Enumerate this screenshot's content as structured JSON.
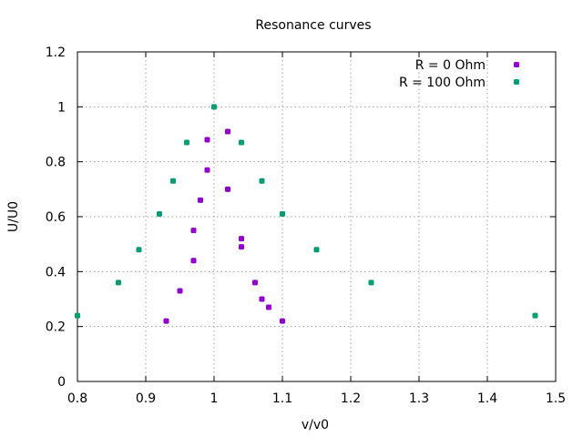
{
  "chart_data": {
    "type": "scatter",
    "title": "Resonance curves",
    "xlabel": "v/v0",
    "ylabel": "U/U0",
    "xlim": [
      0.8,
      1.5
    ],
    "ylim": [
      0,
      1.2
    ],
    "xticks": [
      "0.8",
      "0.9",
      "1",
      "1.1",
      "1.2",
      "1.3",
      "1.4",
      "1.5"
    ],
    "yticks": [
      "0",
      "0.2",
      "0.4",
      "0.6",
      "0.8",
      "1",
      "1.2"
    ],
    "grid": true,
    "legend_position": "top-right",
    "series": [
      {
        "name": "R = 0 Ohm",
        "color": "#9400d3",
        "points": [
          [
            0.93,
            0.22
          ],
          [
            0.95,
            0.33
          ],
          [
            0.97,
            0.44
          ],
          [
            0.97,
            0.55
          ],
          [
            0.98,
            0.66
          ],
          [
            0.99,
            0.77
          ],
          [
            0.99,
            0.88
          ],
          [
            1.02,
            0.91
          ],
          [
            1.02,
            0.7
          ],
          [
            1.04,
            0.52
          ],
          [
            1.04,
            0.49
          ],
          [
            1.06,
            0.36
          ],
          [
            1.07,
            0.3
          ],
          [
            1.08,
            0.27
          ],
          [
            1.1,
            0.22
          ]
        ]
      },
      {
        "name": "R = 100 Ohm",
        "color": "#009e73",
        "points": [
          [
            0.8,
            0.24
          ],
          [
            0.86,
            0.36
          ],
          [
            0.89,
            0.48
          ],
          [
            0.92,
            0.61
          ],
          [
            0.94,
            0.73
          ],
          [
            0.96,
            0.87
          ],
          [
            1.0,
            1.0
          ],
          [
            1.04,
            0.87
          ],
          [
            1.07,
            0.73
          ],
          [
            1.1,
            0.61
          ],
          [
            1.15,
            0.48
          ],
          [
            1.23,
            0.36
          ],
          [
            1.47,
            0.24
          ]
        ]
      }
    ]
  }
}
